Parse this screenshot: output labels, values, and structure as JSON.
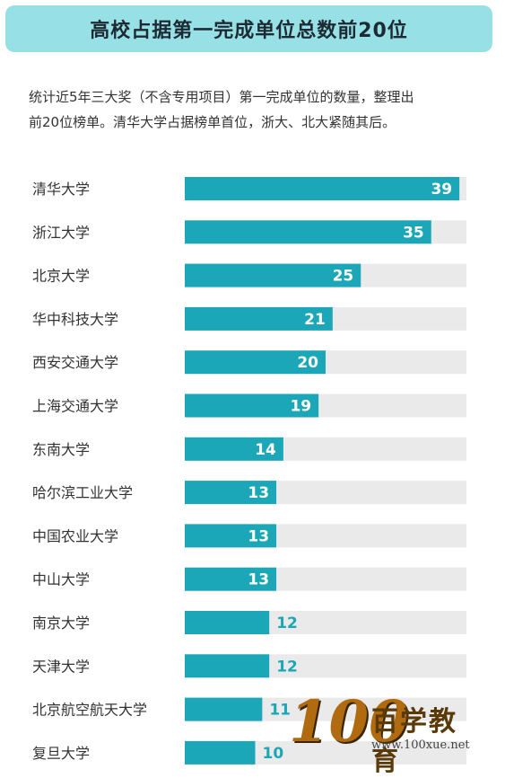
{
  "title": "高校占据第一完成单位总数前20位",
  "description": [
    "统计近5年三大奖（不含专用项目）第一完成单位的数量，整理出",
    "前20位榜单。清华大学占据榜单首位，浙大、北大紧随其后。"
  ],
  "chart_data": {
    "type": "bar",
    "orientation": "horizontal",
    "categories": [
      "清华大学",
      "浙江大学",
      "北京大学",
      "华中科技大学",
      "西安交通大学",
      "上海交通大学",
      "东南大学",
      "哈尔滨工业大学",
      "中国农业大学",
      "中山大学",
      "南京大学",
      "天津大学",
      "北京航空航天大学",
      "复旦大学"
    ],
    "values": [
      39,
      35,
      25,
      21,
      20,
      19,
      14,
      13,
      13,
      13,
      12,
      12,
      11,
      10
    ],
    "xlim": [
      0,
      40
    ],
    "bar_color": "#1ba7b8",
    "track_color": "#eaeaea",
    "label_inside_color": "#ffffff",
    "label_outside_color": "#1ba7b8"
  },
  "logo": {
    "number": "100",
    "name": "百学教育",
    "url": "www.100xue.net"
  }
}
